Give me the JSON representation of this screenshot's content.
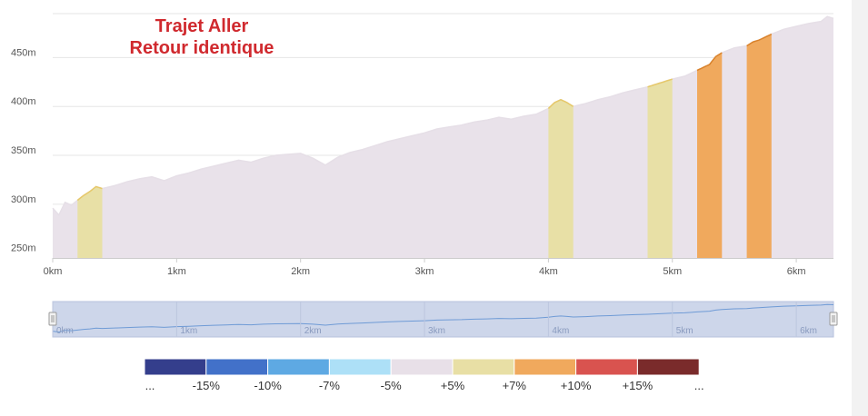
{
  "chart_data": {
    "type": "area",
    "title_lines": [
      "Trajet Aller",
      "Retour identique"
    ],
    "x_ticks": [
      {
        "v": 0,
        "label": "0km"
      },
      {
        "v": 1,
        "label": "1km"
      },
      {
        "v": 2,
        "label": "2km"
      },
      {
        "v": 3,
        "label": "3km"
      },
      {
        "v": 4,
        "label": "4km"
      },
      {
        "v": 5,
        "label": "5km"
      },
      {
        "v": 6,
        "label": "6km"
      }
    ],
    "y_ticks": [
      {
        "v": 250,
        "label": "250m"
      },
      {
        "v": 300,
        "label": "300m"
      },
      {
        "v": 350,
        "label": "350m"
      },
      {
        "v": 400,
        "label": "400m"
      },
      {
        "v": 450,
        "label": "450m"
      }
    ],
    "xlim": [
      0,
      6.3
    ],
    "ylim": [
      245,
      495
    ],
    "elevation_profile": {
      "x_km": [
        0,
        0.05,
        0.1,
        0.15,
        0.2,
        0.25,
        0.3,
        0.35,
        0.4,
        0.5,
        0.6,
        0.7,
        0.8,
        0.9,
        1.0,
        1.1,
        1.2,
        1.3,
        1.4,
        1.5,
        1.6,
        1.7,
        1.8,
        1.9,
        2.0,
        2.1,
        2.2,
        2.3,
        2.4,
        2.5,
        2.6,
        2.7,
        2.8,
        2.9,
        3.0,
        3.1,
        3.2,
        3.3,
        3.4,
        3.5,
        3.6,
        3.7,
        3.8,
        3.9,
        4.0,
        4.05,
        4.1,
        4.15,
        4.2,
        4.3,
        4.4,
        4.5,
        4.6,
        4.7,
        4.8,
        4.9,
        5.0,
        5.1,
        5.2,
        5.3,
        5.35,
        5.4,
        5.5,
        5.6,
        5.65,
        5.7,
        5.8,
        5.9,
        6.0,
        6.1,
        6.2,
        6.25,
        6.3
      ],
      "elevation_m": [
        296,
        289,
        302,
        299,
        304,
        309,
        313,
        318,
        316,
        319,
        323,
        326,
        328,
        324,
        329,
        332,
        336,
        339,
        342,
        345,
        343,
        347,
        350,
        351,
        352,
        347,
        340,
        348,
        353,
        356,
        360,
        364,
        367,
        370,
        373,
        377,
        379,
        381,
        384,
        386,
        389,
        387,
        390,
        392,
        398,
        404,
        407,
        404,
        400,
        403,
        407,
        410,
        414,
        417,
        420,
        424,
        428,
        431,
        437,
        443,
        451,
        455,
        460,
        462,
        466,
        468,
        474,
        479,
        482,
        485,
        487,
        492,
        490
      ]
    },
    "gradient_bands": [
      {
        "from_km": 0.2,
        "to_km": 0.4,
        "class": "+5%"
      },
      {
        "from_km": 4.0,
        "to_km": 4.2,
        "class": "+5%"
      },
      {
        "from_km": 4.8,
        "to_km": 5.0,
        "class": "+5%"
      },
      {
        "from_km": 5.2,
        "to_km": 5.4,
        "class": "+10%"
      },
      {
        "from_km": 5.6,
        "to_km": 5.8,
        "class": "+10%"
      }
    ],
    "navigator_ticks": [
      "0km",
      "1km",
      "2km",
      "3km",
      "4km",
      "5km",
      "6km"
    ],
    "legend": [
      {
        "color": "#343e8c",
        "label": "..."
      },
      {
        "color": "#4271c9",
        "label": "-15%"
      },
      {
        "color": "#5ea9e3",
        "label": "-10%"
      },
      {
        "color": "#ade0f7",
        "label": "-7%"
      },
      {
        "color": "#e8e0e8",
        "label": "-5%"
      },
      {
        "color": "#e8dfa5",
        "label": "+5%"
      },
      {
        "color": "#f0a95d",
        "label": "+7%"
      },
      {
        "color": "#d9534f",
        "label": "+10%"
      },
      {
        "color": "#7a2b2b",
        "label": "+15%"
      },
      {
        "color": "",
        "label": "..."
      }
    ]
  },
  "colors": {
    "area_fill": "#e9e2ea",
    "area_line": "#e6dfe7",
    "band_+5%": "#e8e0a6",
    "band_+5%_line": "#e6c86a",
    "band_+10%": "#f0a95d",
    "band_+10%_line": "#d9822b",
    "navigator_bg": "#cdd6ea",
    "navigator_line": "#6f9bd6",
    "gridline": "#e6e6e6"
  }
}
